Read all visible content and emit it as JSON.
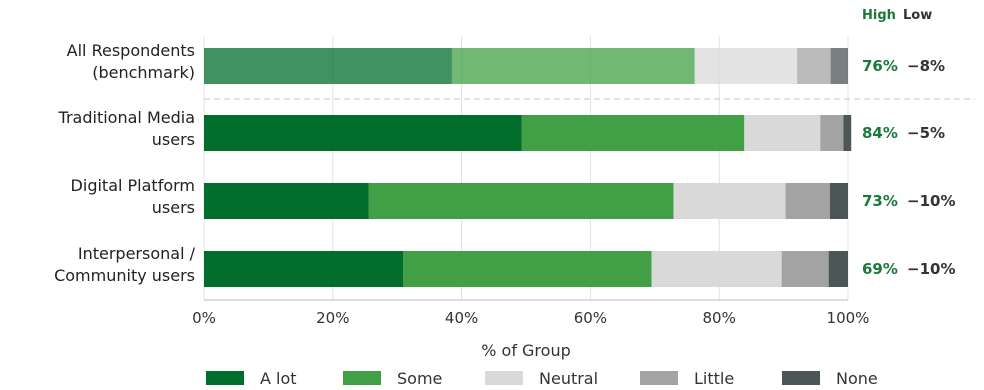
{
  "chart_data": {
    "type": "bar",
    "orientation": "horizontal",
    "stacked": true,
    "categories": [
      [
        "All Respondents",
        "(benchmark)"
      ],
      [
        "Traditional Media",
        "users"
      ],
      [
        "Digital Platform",
        "users"
      ],
      [
        "Interpersonal /",
        "Community users"
      ]
    ],
    "series": [
      {
        "name": "A lot",
        "color": "#006d2c",
        "values": [
          38.5,
          49.3,
          25.6,
          30.9
        ]
      },
      {
        "name": "Some",
        "color": "#41a046",
        "values": [
          37.7,
          34.6,
          47.3,
          38.6
        ]
      },
      {
        "name": "Neutral",
        "color": "#d9d9d9",
        "values": [
          15.9,
          11.8,
          17.4,
          20.2
        ]
      },
      {
        "name": "Little",
        "color": "#a3a3a3",
        "values": [
          5.2,
          3.6,
          6.9,
          7.3
        ]
      },
      {
        "name": "None",
        "color": "#4d5656",
        "values": [
          2.7,
          1.2,
          2.8,
          3.0
        ]
      }
    ],
    "benchmark_index": 0,
    "xlabel": "% of Group",
    "xlim": [
      0,
      100
    ],
    "x_ticks": [
      0,
      20,
      40,
      60,
      80,
      100
    ],
    "x_tick_labels": [
      "0%",
      "20%",
      "40%",
      "60%",
      "80%",
      "100%"
    ],
    "grid": "vertical",
    "legend_position": "bottom",
    "side_header": {
      "high": "High",
      "low": "Low"
    },
    "side_values": [
      {
        "high": "76%",
        "low": "−8%"
      },
      {
        "high": "84%",
        "low": "−5%"
      },
      {
        "high": "73%",
        "low": "−10%"
      },
      {
        "high": "69%",
        "low": "−10%"
      }
    ]
  }
}
